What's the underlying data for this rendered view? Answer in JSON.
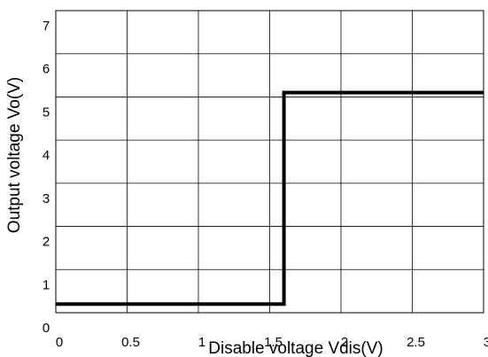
{
  "chart_data": {
    "type": "line",
    "title": "",
    "xlabel": "Disable voltage Vdis(V)",
    "ylabel": "Output voltage Vo(V)",
    "xlim": [
      0,
      3
    ],
    "ylim": [
      0,
      7
    ],
    "x_ticks": [
      0,
      0.5,
      1,
      1.5,
      2,
      2.5,
      3
    ],
    "x_tick_labels": [
      "0",
      "0.5",
      "1",
      "1.5",
      "2",
      "2.5",
      "3"
    ],
    "y_ticks": [
      0,
      1,
      2,
      3,
      4,
      5,
      6,
      7
    ],
    "y_tick_labels": [
      "0",
      "1",
      "2",
      "3",
      "4",
      "5",
      "6",
      "7"
    ],
    "grid": true,
    "series": [
      {
        "x": [
          0,
          1.6,
          1.6,
          3
        ],
        "y": [
          0.2,
          0.2,
          5.1,
          5.1
        ],
        "color": "#000000"
      }
    ]
  }
}
